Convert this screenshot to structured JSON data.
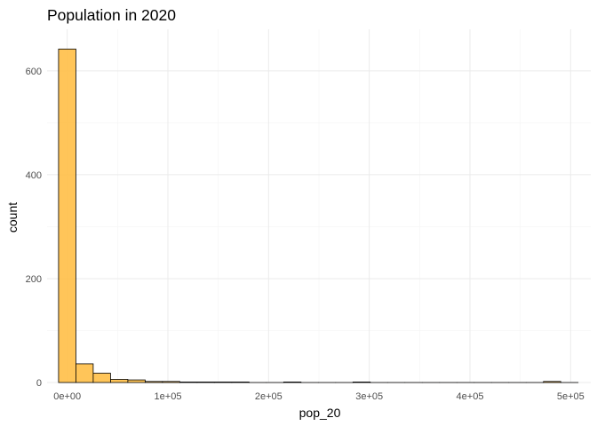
{
  "chart_data": {
    "type": "bar",
    "title": "Population in 2020",
    "xlabel": "pop_20",
    "ylabel": "count",
    "xlim": [
      -20000,
      520000
    ],
    "ylim": [
      0,
      680
    ],
    "grid": true,
    "bar_fill": "#FFBF47",
    "bar_stroke": "#000000",
    "grid_major_color": "#EBEBEB",
    "grid_minor_color": "#F4F4F4",
    "x_ticks": [
      {
        "value": 0,
        "label": "0e+00"
      },
      {
        "value": 100000,
        "label": "1e+05"
      },
      {
        "value": 200000,
        "label": "2e+05"
      },
      {
        "value": 300000,
        "label": "3e+05"
      },
      {
        "value": 400000,
        "label": "4e+05"
      },
      {
        "value": 500000,
        "label": "5e+05"
      }
    ],
    "y_ticks": [
      {
        "value": 0,
        "label": "0"
      },
      {
        "value": 200,
        "label": "200"
      },
      {
        "value": 400,
        "label": "400"
      },
      {
        "value": 600,
        "label": "600"
      }
    ],
    "bins": [
      {
        "x0": -8600,
        "x1": 8600,
        "count": 642
      },
      {
        "x0": 8600,
        "x1": 25800,
        "count": 36
      },
      {
        "x0": 25800,
        "x1": 43000,
        "count": 18
      },
      {
        "x0": 43000,
        "x1": 60200,
        "count": 6
      },
      {
        "x0": 60200,
        "x1": 77400,
        "count": 5
      },
      {
        "x0": 77400,
        "x1": 94600,
        "count": 2
      },
      {
        "x0": 94600,
        "x1": 111800,
        "count": 2
      },
      {
        "x0": 111800,
        "x1": 129000,
        "count": 1
      },
      {
        "x0": 129000,
        "x1": 146200,
        "count": 1
      },
      {
        "x0": 146200,
        "x1": 163400,
        "count": 1
      },
      {
        "x0": 163400,
        "x1": 180600,
        "count": 1
      },
      {
        "x0": 180600,
        "x1": 197800,
        "count": 0
      },
      {
        "x0": 197800,
        "x1": 215000,
        "count": 0
      },
      {
        "x0": 215000,
        "x1": 232200,
        "count": 1
      },
      {
        "x0": 232200,
        "x1": 249400,
        "count": 0
      },
      {
        "x0": 249400,
        "x1": 266600,
        "count": 0
      },
      {
        "x0": 266600,
        "x1": 283800,
        "count": 0
      },
      {
        "x0": 283800,
        "x1": 301000,
        "count": 1
      },
      {
        "x0": 301000,
        "x1": 318200,
        "count": 0
      },
      {
        "x0": 318200,
        "x1": 335400,
        "count": 0
      },
      {
        "x0": 335400,
        "x1": 352600,
        "count": 0
      },
      {
        "x0": 352600,
        "x1": 369800,
        "count": 0
      },
      {
        "x0": 369800,
        "x1": 387000,
        "count": 0
      },
      {
        "x0": 387000,
        "x1": 404200,
        "count": 0
      },
      {
        "x0": 404200,
        "x1": 421400,
        "count": 0
      },
      {
        "x0": 421400,
        "x1": 438600,
        "count": 0
      },
      {
        "x0": 438600,
        "x1": 455800,
        "count": 0
      },
      {
        "x0": 455800,
        "x1": 473000,
        "count": 0
      },
      {
        "x0": 473000,
        "x1": 490200,
        "count": 2
      },
      {
        "x0": 490200,
        "x1": 507400,
        "count": 0
      }
    ]
  }
}
